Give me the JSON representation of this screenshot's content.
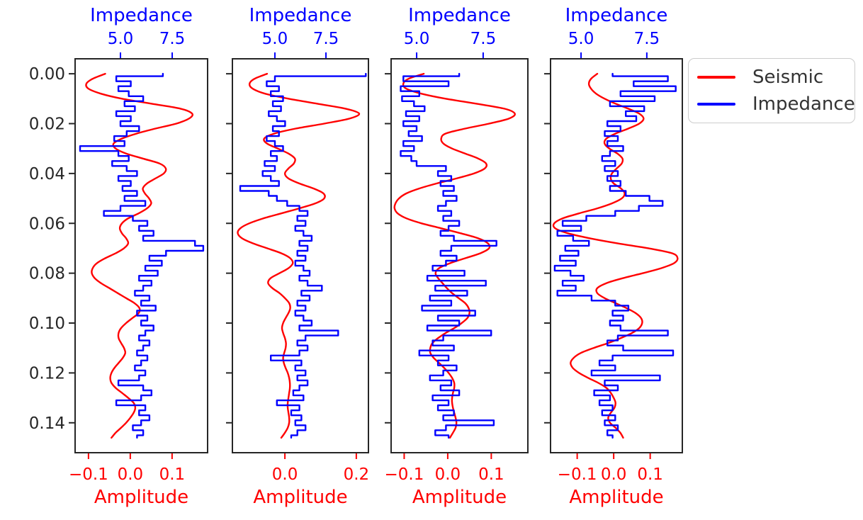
{
  "figure": {
    "background": "#ffffff"
  },
  "colors": {
    "seismic": "#ff0000",
    "impedance": "#0000ff",
    "axis_text": "#262626",
    "frame": "#262626",
    "legend_border": "#cccccc",
    "legend_text": "#333333"
  },
  "legend": {
    "items": [
      {
        "label": "Seismic",
        "color": "#ff0000"
      },
      {
        "label": "Impedance",
        "color": "#0000ff"
      }
    ]
  },
  "depth_axis": {
    "ticks": [
      0.0,
      0.02,
      0.04,
      0.06,
      0.08,
      0.1,
      0.12,
      0.14
    ],
    "tick_labels": [
      "0.00",
      "0.02",
      "0.04",
      "0.06",
      "0.08",
      "0.10",
      "0.12",
      "0.14"
    ],
    "range": [
      -0.006,
      0.152
    ],
    "inverted": true
  },
  "t": {
    "start": 0.0,
    "step": 0.002,
    "count": 74
  },
  "chart_data": [
    {
      "type": "line",
      "top_axis": {
        "label": "Impedance",
        "ticks": [
          5.0,
          7.5
        ],
        "tick_labels": [
          "5.0",
          "7.5"
        ],
        "range": [
          2.81,
          9.21
        ]
      },
      "bottom_axis": {
        "label": "Amplitude",
        "ticks": [
          -0.1,
          0.0,
          0.1
        ],
        "tick_labels": [
          "−0.1",
          "0.0",
          "0.1"
        ],
        "range": [
          -0.132,
          0.185
        ]
      },
      "show_depth_labels": true,
      "series": [
        {
          "name": "Seismic",
          "x_axis": "bottom",
          "color": "#ff0000",
          "style": "smooth",
          "values": [
            -0.06,
            -0.09,
            -0.105,
            -0.1,
            -0.07,
            -0.02,
            0.05,
            0.12,
            0.148,
            0.14,
            0.11,
            0.06,
            0.015,
            -0.02,
            -0.04,
            -0.035,
            -0.01,
            0.03,
            0.07,
            0.085,
            0.08,
            0.06,
            0.04,
            0.03,
            0.035,
            0.045,
            0.05,
            0.04,
            0.02,
            -0.005,
            -0.02,
            -0.025,
            -0.02,
            -0.01,
            -0.005,
            -0.015,
            -0.035,
            -0.06,
            -0.08,
            -0.09,
            -0.092,
            -0.085,
            -0.07,
            -0.05,
            -0.03,
            -0.01,
            0.01,
            0.022,
            0.02,
            0.005,
            -0.01,
            -0.022,
            -0.028,
            -0.028,
            -0.022,
            -0.015,
            -0.012,
            -0.018,
            -0.028,
            -0.038,
            -0.045,
            -0.048,
            -0.045,
            -0.035,
            -0.02,
            -0.005,
            0.008,
            0.012,
            0.008,
            0.0,
            -0.01,
            -0.022,
            -0.035,
            -0.045
          ]
        },
        {
          "name": "Impedance",
          "x_axis": "top",
          "color": "#0000ff",
          "style": "steps",
          "values": [
            7.05,
            4.8,
            5.5,
            4.9,
            5.4,
            6.1,
            5.2,
            5.7,
            4.8,
            5.5,
            5.0,
            5.9,
            5.3,
            4.7,
            5.2,
            3.05,
            4.9,
            5.4,
            4.6,
            5.3,
            5.8,
            4.9,
            5.5,
            5.1,
            5.8,
            5.2,
            6.2,
            5.0,
            4.2,
            5.6,
            6.3,
            5.9,
            6.6,
            6.1,
            8.6,
            9.0,
            7.2,
            6.4,
            7.0,
            6.2,
            6.8,
            5.9,
            6.5,
            6.1,
            5.7,
            6.4,
            6.0,
            6.7,
            5.8,
            6.3,
            6.0,
            6.6,
            6.2,
            5.9,
            6.4,
            6.1,
            5.8,
            6.3,
            6.0,
            5.7,
            6.2,
            5.9,
            4.9,
            6.1,
            6.5,
            6.0,
            4.8,
            6.2,
            5.9,
            6.4,
            6.0,
            5.6,
            6.1,
            5.8
          ]
        }
      ]
    },
    {
      "type": "line",
      "top_axis": {
        "label": "Impedance",
        "ticks": [
          5.0,
          7.5
        ],
        "tick_labels": [
          "5.0",
          "7.5"
        ],
        "range": [
          2.92,
          9.58
        ]
      },
      "bottom_axis": {
        "label": "Amplitude",
        "ticks": [
          0.0,
          0.2
        ],
        "tick_labels": [
          "0.0",
          "0.2"
        ],
        "range": [
          -0.147,
          0.234
        ]
      },
      "show_depth_labels": false,
      "series": [
        {
          "name": "Seismic",
          "x_axis": "bottom",
          "color": "#ff0000",
          "style": "smooth",
          "values": [
            -0.05,
            -0.085,
            -0.099,
            -0.09,
            -0.055,
            0.01,
            0.09,
            0.17,
            0.208,
            0.18,
            0.11,
            0.03,
            -0.03,
            -0.058,
            -0.05,
            -0.02,
            0.01,
            0.028,
            0.025,
            0.01,
            0.0,
            0.01,
            0.04,
            0.08,
            0.108,
            0.11,
            0.085,
            0.04,
            -0.01,
            -0.06,
            -0.1,
            -0.125,
            -0.132,
            -0.12,
            -0.09,
            -0.05,
            -0.01,
            0.015,
            0.022,
            0.01,
            -0.015,
            -0.04,
            -0.047,
            -0.035,
            -0.015,
            0.0,
            0.012,
            0.015,
            0.01,
            0.002,
            -0.005,
            -0.008,
            -0.005,
            0.0,
            0.003,
            0.002,
            -0.002,
            -0.005,
            -0.003,
            0.002,
            0.008,
            0.012,
            0.014,
            0.014,
            0.012,
            0.01,
            0.008,
            0.008,
            0.01,
            0.012,
            0.012,
            0.008,
            0.0,
            -0.01
          ]
        },
        {
          "name": "Impedance",
          "x_axis": "top",
          "color": "#0000ff",
          "style": "steps",
          "values": [
            9.45,
            5.0,
            4.6,
            5.2,
            4.8,
            5.4,
            4.9,
            5.3,
            4.7,
            5.1,
            5.5,
            4.9,
            5.2,
            4.6,
            5.0,
            5.4,
            4.8,
            5.1,
            4.5,
            5.0,
            4.4,
            4.8,
            5.2,
            3.3,
            4.7,
            5.1,
            5.6,
            6.2,
            6.6,
            6.1,
            6.5,
            6.0,
            6.4,
            6.8,
            6.2,
            6.6,
            6.1,
            6.5,
            6.0,
            6.4,
            6.7,
            6.2,
            6.6,
            7.3,
            6.3,
            6.7,
            6.1,
            6.5,
            6.0,
            6.4,
            6.8,
            6.2,
            8.1,
            6.5,
            6.1,
            6.6,
            6.2,
            4.8,
            6.3,
            6.0,
            6.5,
            6.1,
            6.6,
            6.2,
            5.9,
            6.4,
            5.1,
            6.2,
            5.8,
            6.3,
            6.0,
            6.5,
            6.1,
            5.8
          ]
        }
      ]
    },
    {
      "type": "line",
      "top_axis": {
        "label": "Impedance",
        "ticks": [
          5.0,
          7.5
        ],
        "tick_labels": [
          "5.0",
          "7.5"
        ],
        "range": [
          4.04,
          9.18
        ]
      },
      "bottom_axis": {
        "label": "Amplitude",
        "ticks": [
          -0.1,
          0.0,
          0.1
        ],
        "tick_labels": [
          "−0.1",
          "0.0",
          "0.1"
        ],
        "range": [
          -0.13,
          0.184
        ]
      },
      "show_depth_labels": false,
      "series": [
        {
          "name": "Seismic",
          "x_axis": "bottom",
          "color": "#ff0000",
          "style": "smooth",
          "values": [
            -0.055,
            -0.09,
            -0.102,
            -0.095,
            -0.06,
            -0.005,
            0.065,
            0.13,
            0.154,
            0.14,
            0.095,
            0.04,
            -0.005,
            -0.015,
            -0.01,
            0.01,
            0.04,
            0.07,
            0.088,
            0.085,
            0.06,
            0.02,
            -0.025,
            -0.065,
            -0.095,
            -0.112,
            -0.12,
            -0.122,
            -0.115,
            -0.095,
            -0.06,
            -0.015,
            0.03,
            0.07,
            0.092,
            0.095,
            0.075,
            0.04,
            0.005,
            -0.02,
            -0.028,
            -0.022,
            -0.012,
            -0.002,
            0.01,
            0.025,
            0.04,
            0.048,
            0.05,
            0.045,
            0.032,
            0.015,
            -0.005,
            -0.022,
            -0.035,
            -0.04,
            -0.04,
            -0.032,
            -0.02,
            -0.008,
            0.002,
            0.01,
            0.015,
            0.015,
            0.012,
            0.01,
            0.01,
            0.012,
            0.015,
            0.018,
            0.02,
            0.018,
            0.012,
            0.005
          ]
        },
        {
          "name": "Impedance",
          "x_axis": "top",
          "color": "#0000ff",
          "style": "steps",
          "values": [
            6.6,
            4.5,
            6.2,
            4.4,
            5.1,
            4.45,
            4.9,
            5.3,
            4.6,
            5.1,
            4.5,
            5.0,
            4.7,
            5.2,
            4.5,
            4.9,
            4.4,
            4.8,
            5.0,
            6.1,
            5.8,
            6.3,
            5.9,
            6.4,
            6.0,
            6.5,
            6.1,
            5.8,
            6.3,
            6.0,
            6.6,
            6.2,
            5.9,
            6.4,
            8.0,
            6.3,
            5.9,
            6.5,
            6.1,
            5.6,
            6.8,
            5.4,
            7.6,
            5.7,
            6.9,
            5.5,
            6.3,
            5.2,
            7.2,
            5.8,
            6.6,
            5.4,
            7.8,
            6.0,
            5.6,
            6.4,
            5.1,
            6.2,
            5.8,
            6.5,
            6.0,
            5.5,
            6.3,
            5.9,
            6.6,
            5.6,
            6.2,
            5.8,
            6.4,
            6.0,
            7.9,
            6.1,
            5.7,
            6.2
          ]
        }
      ]
    },
    {
      "type": "line",
      "top_axis": {
        "label": "Impedance",
        "ticks": [
          5.0,
          7.5
        ],
        "tick_labels": [
          "5.0",
          "7.5"
        ],
        "range": [
          3.84,
          8.85
        ]
      },
      "bottom_axis": {
        "label": "Amplitude",
        "ticks": [
          -0.1,
          0.0,
          0.1
        ],
        "tick_labels": [
          "−0.1",
          "0.0",
          "0.1"
        ],
        "range": [
          -0.173,
          0.188
        ]
      },
      "show_depth_labels": false,
      "series": [
        {
          "name": "Seismic",
          "x_axis": "bottom",
          "color": "#ff0000",
          "style": "smooth",
          "values": [
            -0.045,
            -0.062,
            -0.068,
            -0.062,
            -0.048,
            -0.025,
            0.005,
            0.04,
            0.07,
            0.082,
            0.07,
            0.04,
            0.005,
            -0.02,
            -0.025,
            -0.012,
            0.01,
            0.024,
            0.022,
            0.008,
            -0.005,
            -0.008,
            0.0,
            0.02,
            0.03,
            0.022,
            -0.005,
            -0.045,
            -0.095,
            -0.14,
            -0.163,
            -0.16,
            -0.125,
            -0.065,
            0.01,
            0.095,
            0.16,
            0.175,
            0.165,
            0.13,
            0.08,
            0.025,
            -0.02,
            -0.045,
            -0.045,
            -0.025,
            0.005,
            0.035,
            0.06,
            0.075,
            0.078,
            0.07,
            0.05,
            0.02,
            -0.015,
            -0.055,
            -0.09,
            -0.11,
            -0.118,
            -0.112,
            -0.095,
            -0.07,
            -0.042,
            -0.02,
            -0.008,
            0.0,
            0.005,
            0.002,
            -0.008,
            -0.015,
            -0.01,
            0.005,
            0.018,
            0.026
          ]
        },
        {
          "name": "Impedance",
          "x_axis": "top",
          "color": "#0000ff",
          "style": "steps",
          "values": [
            6.2,
            8.3,
            7.0,
            8.6,
            6.5,
            7.8,
            6.1,
            7.4,
            6.7,
            7.1,
            6.0,
            6.5,
            5.9,
            6.4,
            6.0,
            6.6,
            6.1,
            5.8,
            6.3,
            5.9,
            6.4,
            6.0,
            6.5,
            6.1,
            6.7,
            7.6,
            8.1,
            7.2,
            6.3,
            5.2,
            4.3,
            5.0,
            4.1,
            4.7,
            5.3,
            4.4,
            4.9,
            4.2,
            4.8,
            4.0,
            4.6,
            5.1,
            4.3,
            4.8,
            4.1,
            5.4,
            6.3,
            6.8,
            6.2,
            6.6,
            6.1,
            6.5,
            8.3,
            6.4,
            6.0,
            6.6,
            8.5,
            6.2,
            5.7,
            6.3,
            5.4,
            8.0,
            5.9,
            6.4,
            5.5,
            6.1,
            5.7,
            6.2,
            5.8,
            6.3,
            5.9,
            6.4,
            6.0,
            6.2
          ]
        }
      ]
    }
  ]
}
